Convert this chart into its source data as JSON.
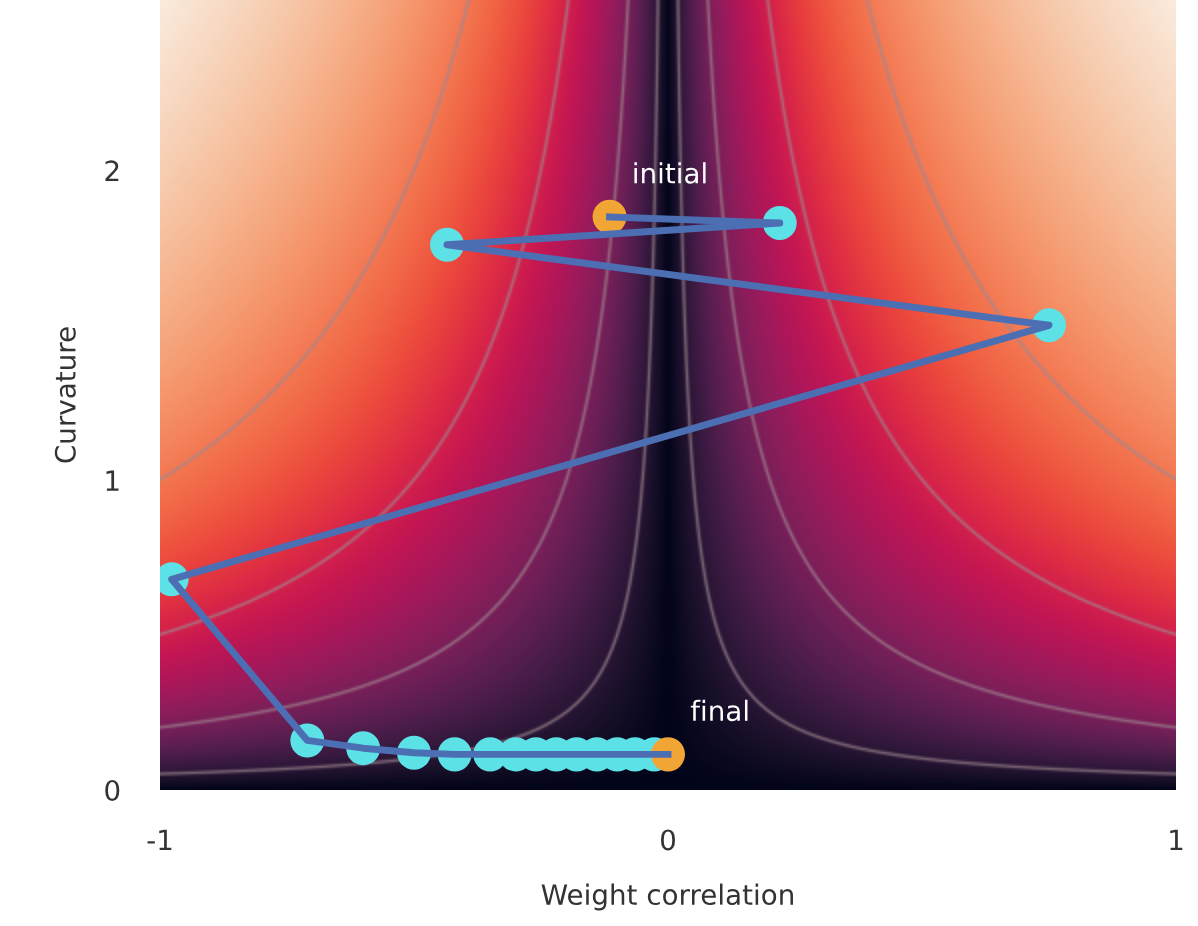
{
  "chart_data": {
    "type": "line",
    "xlabel": "Weight correlation",
    "ylabel": "Curvature",
    "xlim": [
      -1,
      1
    ],
    "ylim": [
      0,
      2.55
    ],
    "xticks": [
      -1,
      0,
      1
    ],
    "yticks": [
      0,
      1,
      2
    ],
    "grid": false,
    "series": [
      {
        "type": "scatter",
        "color": "#5ce1e6",
        "x": [
          0.22,
          -0.435,
          0.75,
          -0.977,
          -0.71,
          -0.6,
          -0.5,
          -0.42,
          -0.35,
          -0.3,
          -0.26,
          -0.22,
          -0.18,
          -0.14,
          -0.1,
          -0.065,
          -0.027
        ],
        "values": [
          1.83,
          1.76,
          1.5,
          0.68,
          0.16,
          0.135,
          0.12,
          0.115,
          0.115,
          0.115,
          0.115,
          0.115,
          0.115,
          0.115,
          0.115,
          0.115,
          0.115
        ]
      },
      {
        "type": "scatter",
        "color": "#f0a535",
        "x": [
          -0.115,
          0
        ],
        "values": [
          1.85,
          0.115
        ]
      },
      {
        "color": "#4c6fb4",
        "x": [
          -0.115,
          0.22,
          -0.435,
          0.75,
          -0.977,
          -0.71,
          -0.6,
          -0.5,
          -0.42,
          -0.35,
          -0.3,
          -0.26,
          -0.22,
          -0.18,
          -0.14,
          -0.1,
          -0.065,
          -0.027,
          0
        ],
        "values": [
          1.85,
          1.83,
          1.76,
          1.5,
          0.68,
          0.16,
          0.135,
          0.12,
          0.115,
          0.115,
          0.115,
          0.115,
          0.115,
          0.115,
          0.115,
          0.115,
          0.115,
          0.115,
          0.115
        ]
      }
    ],
    "annotations": [
      {
        "text": "initial",
        "x": -0.115,
        "y": 1.85
      },
      {
        "text": "final",
        "x": 0,
        "y": 0.115
      }
    ]
  }
}
